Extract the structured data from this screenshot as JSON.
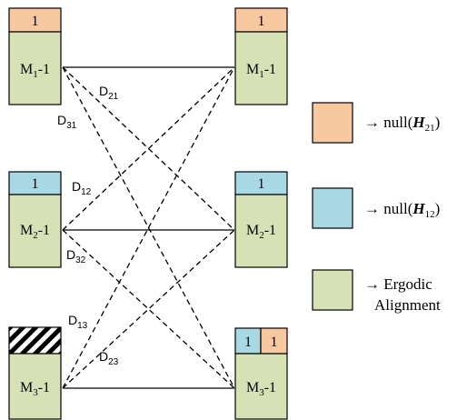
{
  "colors": {
    "orange": "#F8C8A0",
    "blue": "#A9D8E5",
    "green": "#D6E2B6",
    "stroke": "#000000"
  },
  "blocks": {
    "tx1_top": "1",
    "tx1_main": {
      "base": "M",
      "sub": "1",
      "tail": "-1"
    },
    "rx1_top": "1",
    "rx1_main": {
      "base": "M",
      "sub": "1",
      "tail": "-1"
    },
    "tx2_top": "1",
    "tx2_main": {
      "base": "M",
      "sub": "2",
      "tail": "-1"
    },
    "rx2_top": "1",
    "rx2_main": {
      "base": "M",
      "sub": "2",
      "tail": "-1"
    },
    "tx3_main": {
      "base": "M",
      "sub": "3",
      "tail": "-1"
    },
    "rx3_top_left": "1",
    "rx3_top_right": "1",
    "rx3_main": {
      "base": "M",
      "sub": "3",
      "tail": "-1"
    }
  },
  "links": {
    "d21": {
      "base": "D",
      "sub": "21"
    },
    "d31": {
      "base": "D",
      "sub": "31"
    },
    "d12": {
      "base": "D",
      "sub": "12"
    },
    "d32": {
      "base": "D",
      "sub": "32"
    },
    "d13": {
      "base": "D",
      "sub": "13"
    },
    "d23": {
      "base": "D",
      "sub": "23"
    }
  },
  "legend": {
    "item1": {
      "arrow": "→ null(",
      "matrix": "H",
      "sub": "21",
      "close": ")"
    },
    "item2": {
      "arrow": "→ null(",
      "matrix": "H",
      "sub": "12",
      "close": ")"
    },
    "item3": {
      "line1": "→ Ergodic",
      "line2": "Alignment"
    }
  }
}
